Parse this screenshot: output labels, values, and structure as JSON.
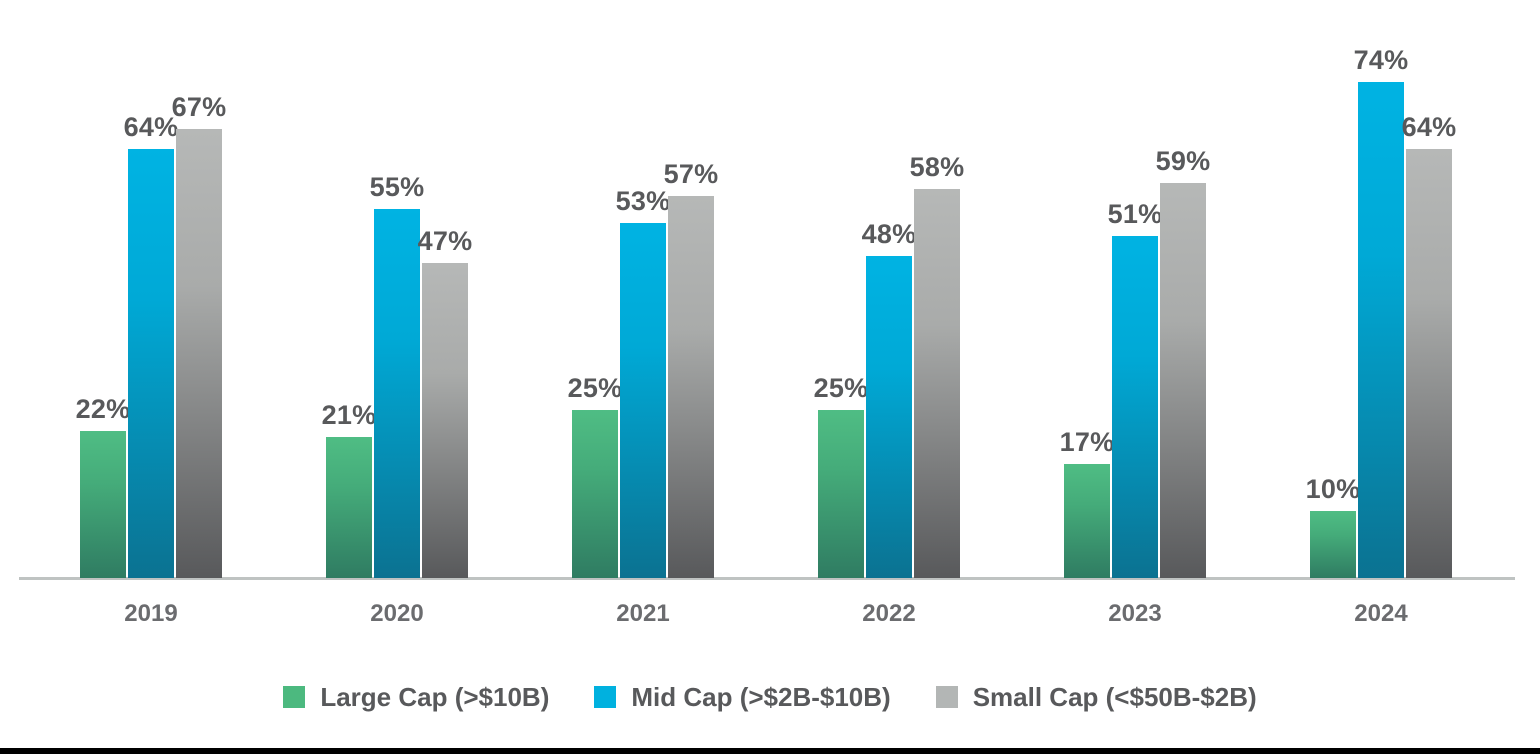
{
  "chart_data": {
    "type": "bar",
    "title": "",
    "categories": [
      "2019",
      "2020",
      "2021",
      "2022",
      "2023",
      "2024"
    ],
    "series": [
      {
        "name": "Large Cap (>$10B)",
        "slug": "large-cap",
        "values": [
          22,
          21,
          25,
          25,
          17,
          10
        ],
        "labels": [
          "22%",
          "21%",
          "25%",
          "25%",
          "17%",
          "10%"
        ],
        "swatch_color": "#4CB97F",
        "gradient_top": "#4FBD84",
        "gradient_mid": "#45AC7A",
        "gradient_bottom": "#2F7C62"
      },
      {
        "name": "Mid Cap (>$2B-$10B)",
        "slug": "mid-cap",
        "values": [
          64,
          55,
          53,
          48,
          51,
          74
        ],
        "labels": [
          "64%",
          "55%",
          "53%",
          "48%",
          "51%",
          "74%"
        ],
        "swatch_color": "#00B1DF",
        "gradient_top": "#00B3E3",
        "gradient_mid": "#00A9D6",
        "gradient_bottom": "#0B7291"
      },
      {
        "name": "Small Cap (<$50B-$2B)",
        "slug": "small-cap",
        "values": [
          67,
          47,
          57,
          58,
          59,
          64
        ],
        "labels": [
          "67%",
          "47%",
          "57%",
          "58%",
          "59%",
          "64%"
        ],
        "swatch_color": "#B3B6B5",
        "gradient_top": "#B6B8B7",
        "gradient_mid": "#A9ABAA",
        "gradient_bottom": "#58595B"
      }
    ],
    "value_suffix": "%",
    "ylim": [
      0,
      86
    ],
    "xlabel": "",
    "ylabel": "",
    "grid": false,
    "legend_position": "bottom",
    "data_label_color": "#58595B",
    "axis_label_color": "#6B6C6F",
    "axis_line_color": "#BFC3C2"
  },
  "footer": {
    "bar_color": "#000000"
  }
}
